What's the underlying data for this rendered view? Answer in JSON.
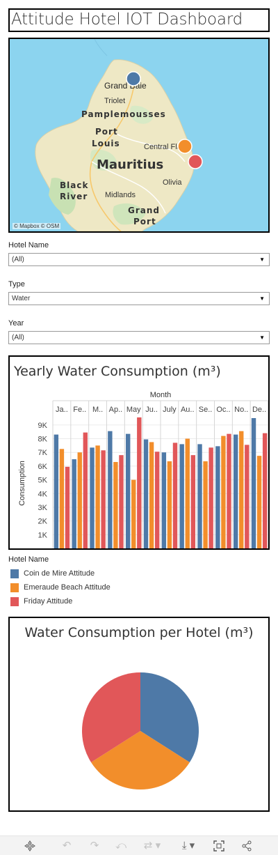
{
  "header": {
    "title": "Attitude Hotel IOT Dashboard"
  },
  "map": {
    "attribution": "© Mapbox  © OSM",
    "labels": [
      "Grand Baie",
      "Triolet",
      "Pamplemousses",
      "Port",
      "Louis",
      "Central Flacq",
      "Mauritius",
      "Olivia",
      "Black",
      "River",
      "Midlands",
      "Grand",
      "Port"
    ],
    "markers": [
      {
        "hotel": "Coin de Mire Attitude",
        "color": "#4e79a7"
      },
      {
        "hotel": "Emeraude Beach Attitude",
        "color": "#f28e2b"
      },
      {
        "hotel": "Friday Attitude",
        "color": "#e15759"
      }
    ]
  },
  "filters": [
    {
      "label": "Hotel Name",
      "value": "(All)"
    },
    {
      "label": "Type",
      "value": "Water"
    },
    {
      "label": "Year",
      "value": "(All)"
    }
  ],
  "colors": {
    "coin": "#4e79a7",
    "emeraude": "#f28e2b",
    "friday": "#e15759"
  },
  "bar_chart_title": "Yearly Water Consumption (m³)",
  "legend": {
    "title": "Hotel Name",
    "items": [
      "Coin de Mire Attitude",
      "Emeraude Beach Attitude",
      "Friday Attitude"
    ]
  },
  "pie_chart_title": "Water Consumption per Hotel (m³)",
  "chart_data": [
    {
      "type": "bar",
      "title": "Yearly Water Consumption (m³)",
      "xlabel": "Month",
      "ylabel": "Consumption",
      "categories": [
        "Ja..",
        "Fe..",
        "M..",
        "Ap..",
        "May",
        "Ju..",
        "July",
        "Au..",
        "Se..",
        "Oc..",
        "No..",
        "De.."
      ],
      "yticks": [
        "1K",
        "2K",
        "3K",
        "4K",
        "5K",
        "6K",
        "7K",
        "8K",
        "9K"
      ],
      "ylim": [
        0,
        9500
      ],
      "series": [
        {
          "name": "Coin de Mire Attitude",
          "color": "#4e79a7",
          "values": [
            8300,
            6500,
            7350,
            8550,
            8350,
            7950,
            7000,
            7600,
            7600,
            7450,
            8300,
            9500
          ]
        },
        {
          "name": "Emeraude Beach Attitude",
          "color": "#f28e2b",
          "values": [
            7250,
            7000,
            7500,
            6300,
            5000,
            7750,
            6350,
            8000,
            6350,
            8200,
            8550,
            6750
          ]
        },
        {
          "name": "Friday Attitude",
          "color": "#e15759",
          "values": [
            5950,
            8450,
            7150,
            6800,
            9550,
            7050,
            7700,
            6800,
            7350,
            8350,
            7550,
            8400
          ]
        }
      ]
    },
    {
      "type": "pie",
      "title": "Water Consumption per Hotel (m³)",
      "categories": [
        "Coin de Mire Attitude",
        "Emeraude Beach Attitude",
        "Friday Attitude"
      ],
      "values": [
        34,
        32,
        34
      ],
      "colors": [
        "#4e79a7",
        "#f28e2b",
        "#e15759"
      ]
    }
  ],
  "toolbar": {
    "icons": [
      "move-icon",
      "undo-icon",
      "redo-icon",
      "revert-icon",
      "refresh-icon",
      "pause-icon",
      "download-icon",
      "fullscreen-icon",
      "share-icon"
    ]
  }
}
